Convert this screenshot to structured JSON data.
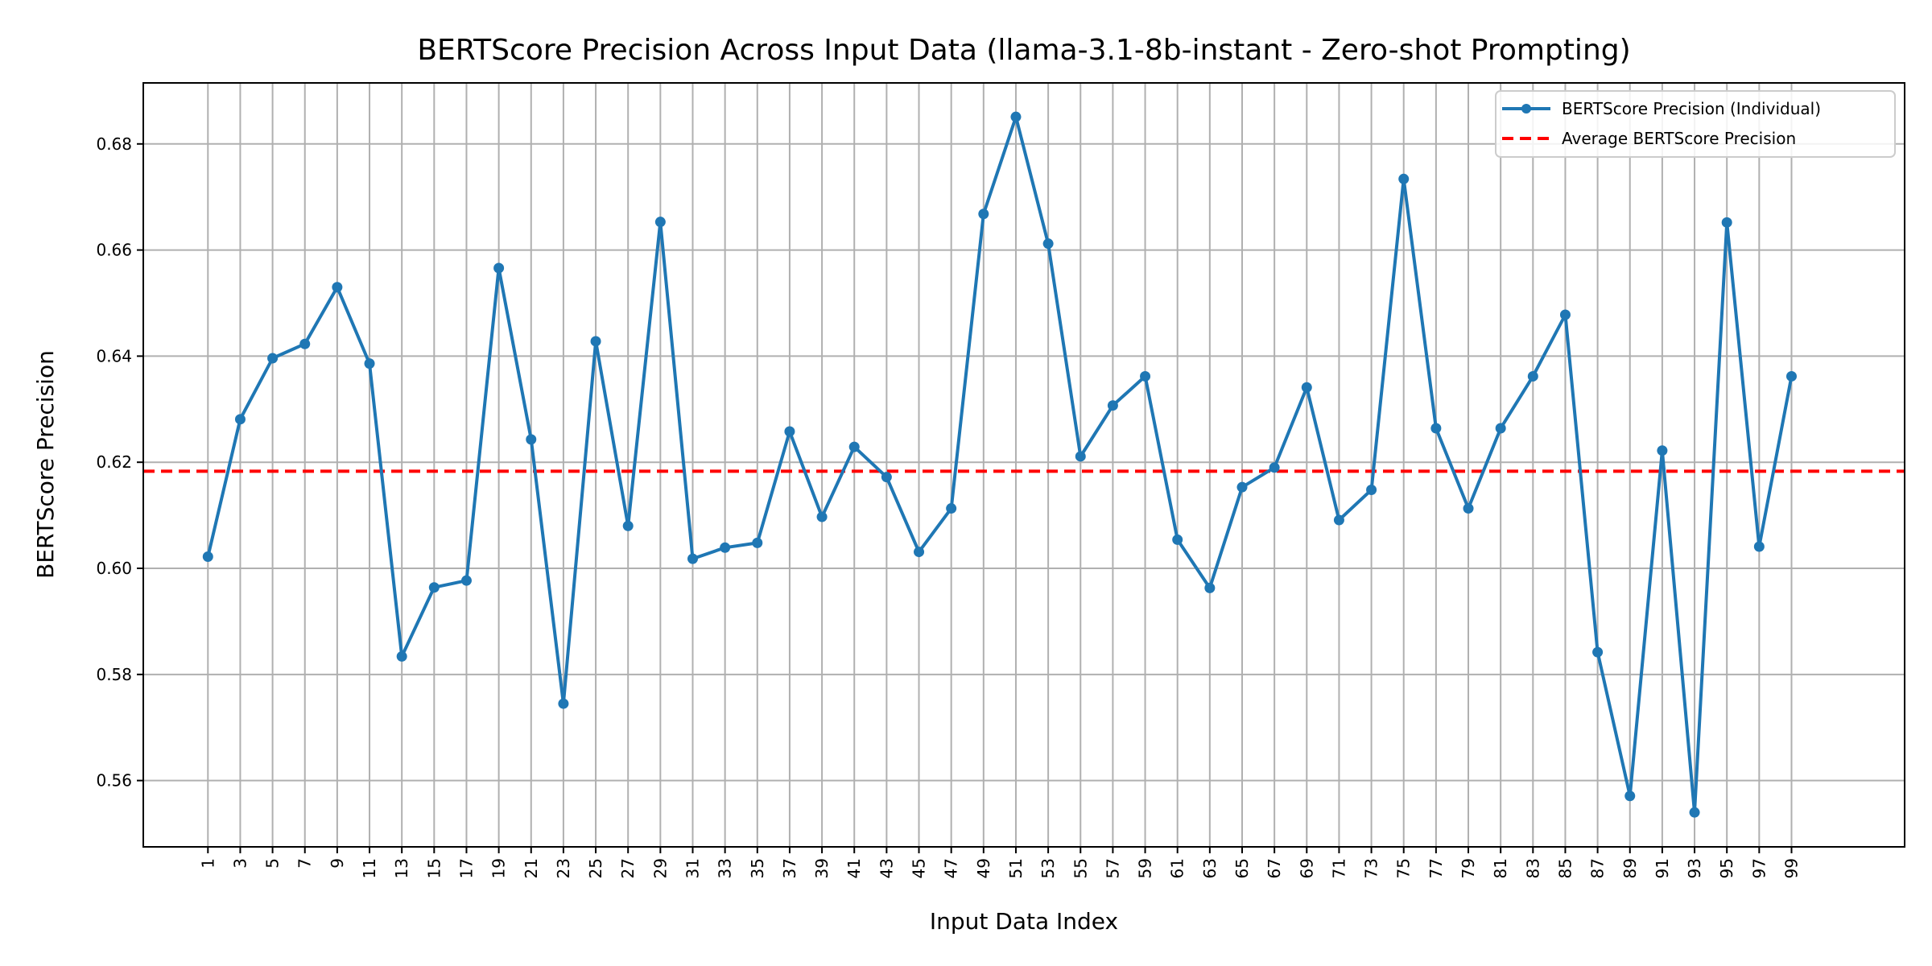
{
  "chart_data": {
    "type": "line",
    "title": "BERTScore Precision Across Input Data (llama-3.1-8b-instant - Zero-shot Prompting)",
    "xlabel": "Input Data Index",
    "ylabel": "BERTScore Precision",
    "xlim": [
      -3,
      106
    ],
    "ylim": [
      0.5475,
      0.6915
    ],
    "x_ticks": [
      1,
      3,
      5,
      7,
      9,
      11,
      13,
      15,
      17,
      19,
      21,
      23,
      25,
      27,
      29,
      31,
      33,
      35,
      37,
      39,
      41,
      43,
      45,
      47,
      49,
      51,
      53,
      55,
      57,
      59,
      61,
      63,
      65,
      67,
      69,
      71,
      73,
      75,
      77,
      79,
      81,
      83,
      85,
      87,
      89,
      91,
      93,
      95,
      97,
      99
    ],
    "y_ticks": [
      0.56,
      0.58,
      0.6,
      0.62,
      0.64,
      0.66,
      0.68
    ],
    "y_tick_labels": [
      "0.56",
      "0.58",
      "0.60",
      "0.62",
      "0.64",
      "0.66",
      "0.68"
    ],
    "grid": true,
    "legend_position": "top-right",
    "series": [
      {
        "name": "BERTScore Precision (Individual)",
        "color": "#1f77b4",
        "style": "solid-marker",
        "x": [
          1,
          3,
          5,
          7,
          9,
          11,
          13,
          15,
          17,
          19,
          21,
          23,
          25,
          27,
          29,
          31,
          33,
          35,
          37,
          39,
          41,
          43,
          45,
          47,
          49,
          51,
          53,
          55,
          57,
          59,
          61,
          63,
          65,
          67,
          69,
          71,
          73,
          75,
          77,
          79,
          81,
          83,
          85,
          87,
          89,
          91,
          93,
          95,
          97,
          99
        ],
        "values": [
          0.6022,
          0.6281,
          0.6396,
          0.6423,
          0.653,
          0.6386,
          0.5834,
          0.5964,
          0.5977,
          0.6566,
          0.6243,
          0.5745,
          0.6428,
          0.608,
          0.6653,
          0.6018,
          0.6039,
          0.6048,
          0.6258,
          0.6097,
          0.6229,
          0.6172,
          0.6031,
          0.6113,
          0.6668,
          0.6851,
          0.6612,
          0.6211,
          0.6307,
          0.6362,
          0.6054,
          0.5963,
          0.6153,
          0.619,
          0.6341,
          0.6091,
          0.6148,
          0.6734,
          0.6264,
          0.6113,
          0.6264,
          0.6362,
          0.6478,
          0.5842,
          0.5571,
          0.6222,
          0.554,
          0.6652,
          0.6041,
          0.6362
        ]
      },
      {
        "name": "Average BERTScore Precision",
        "color": "#ff0000",
        "style": "dashed",
        "value": 0.6183
      }
    ]
  }
}
